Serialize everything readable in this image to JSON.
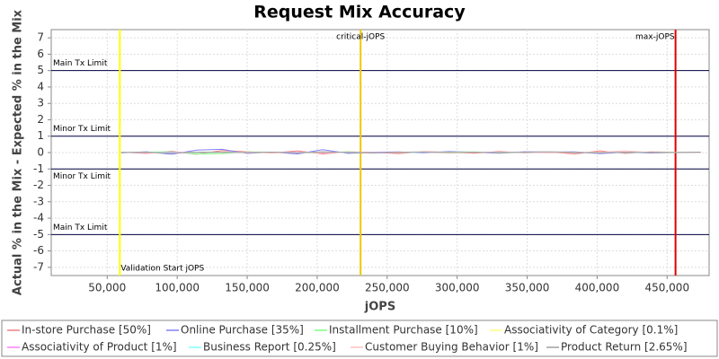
{
  "chart_data": {
    "type": "line",
    "title": "Request Mix Accuracy",
    "x_label": "jOPS",
    "y_label": "Actual % in the Mix - Expected % in the Mix",
    "x": [
      60000,
      78000,
      96000,
      114000,
      132000,
      150000,
      168000,
      186000,
      204000,
      222000,
      240000,
      258000,
      276000,
      294000,
      312000,
      330000,
      348000,
      366000,
      384000,
      402000,
      420000,
      438000,
      456000,
      474000
    ],
    "series": [
      {
        "name": "In-store Purchase [50%]",
        "color": "#f08080",
        "values": [
          0.02,
          -0.05,
          0.08,
          -0.1,
          0.12,
          0.05,
          -0.03,
          0.1,
          -0.08,
          0.04,
          0.02,
          -0.06,
          0.05,
          0.03,
          -0.04,
          0.06,
          -0.02,
          0.03,
          -0.08,
          0.1,
          -0.05,
          0.04,
          0.02,
          0.03
        ]
      },
      {
        "name": "Online Purchase [35%]",
        "color": "#8080ff",
        "values": [
          -0.02,
          0.05,
          -0.1,
          0.15,
          0.2,
          -0.05,
          0.03,
          -0.08,
          0.18,
          -0.05,
          0.02,
          0.04,
          -0.03,
          0.06,
          0.02,
          -0.04,
          0.05,
          0.03,
          0.04,
          -0.06,
          0.02,
          -0.03,
          0.01,
          0.02
        ]
      },
      {
        "name": "Installment Purchase [10%]",
        "color": "#80ff80",
        "values": [
          0.0,
          0.03,
          0.05,
          -0.08,
          -0.06,
          0.04,
          0.02,
          0.01,
          -0.03,
          0.05,
          -0.02,
          0.03,
          0.0,
          0.02,
          0.04,
          -0.02,
          0.01,
          0.03,
          -0.01,
          0.02,
          0.0,
          0.01,
          0.02,
          0.0
        ]
      },
      {
        "name": "Associativity of Category [0.1%]",
        "color": "#ffff80",
        "values": [
          0.0,
          0.0,
          0.01,
          0.0,
          0.0,
          -0.01,
          0.0,
          0.0,
          0.01,
          0.0,
          0.0,
          0.0,
          0.0,
          0.01,
          0.0,
          0.0,
          0.0,
          0.0,
          0.0,
          0.0,
          0.01,
          0.0,
          0.0,
          0.0
        ]
      },
      {
        "name": "Associativity of Product [1%]",
        "color": "#ff80ff",
        "values": [
          0.01,
          -0.02,
          0.03,
          0.0,
          0.02,
          -0.01,
          0.01,
          0.02,
          -0.02,
          0.01,
          0.0,
          0.02,
          -0.01,
          0.0,
          0.01,
          0.02,
          0.0,
          -0.01,
          0.01,
          0.0,
          0.02,
          0.0,
          0.01,
          0.0
        ]
      },
      {
        "name": "Business Report [0.25%]",
        "color": "#80ffff",
        "values": [
          0.0,
          0.01,
          0.0,
          -0.01,
          0.01,
          0.0,
          0.0,
          0.01,
          0.0,
          0.0,
          -0.01,
          0.0,
          0.01,
          0.0,
          0.0,
          0.01,
          0.0,
          0.0,
          0.0,
          0.01,
          0.0,
          0.0,
          0.0,
          0.0
        ]
      },
      {
        "name": "Customer Buying Behavior [1%]",
        "color": "#ffc0c0",
        "values": [
          0.02,
          0.0,
          -0.03,
          0.02,
          0.01,
          0.03,
          -0.02,
          0.01,
          0.0,
          0.02,
          -0.01,
          0.01,
          0.03,
          -0.02,
          0.0,
          0.01,
          0.02,
          -0.01,
          0.0,
          0.02,
          0.1,
          0.0,
          0.01,
          0.0
        ]
      },
      {
        "name": "Product Return [2.65%]",
        "color": "#a0a0a0",
        "values": [
          0.01,
          0.02,
          -0.04,
          0.03,
          0.02,
          0.0,
          0.03,
          -0.02,
          0.05,
          0.01,
          -0.03,
          0.02,
          0.04,
          0.0,
          0.02,
          -0.01,
          0.03,
          0.05,
          0.01,
          -0.02,
          0.02,
          0.01,
          0.0,
          0.02
        ]
      }
    ],
    "xlim": [
      10000,
      480000
    ],
    "xticks": [
      {
        "value": 50000,
        "label": "50,000"
      },
      {
        "value": 100000,
        "label": "100,000"
      },
      {
        "value": 150000,
        "label": "150,000"
      },
      {
        "value": 200000,
        "label": "200,000"
      },
      {
        "value": 250000,
        "label": "250,000"
      },
      {
        "value": 300000,
        "label": "300,000"
      },
      {
        "value": 350000,
        "label": "350,000"
      },
      {
        "value": 400000,
        "label": "400,000"
      },
      {
        "value": 450000,
        "label": "450,000"
      }
    ],
    "ylim": [
      -7.5,
      7.5
    ],
    "yticks": [
      -7,
      -6,
      -5,
      -4,
      -3,
      -2,
      -1,
      0,
      1,
      2,
      3,
      4,
      5,
      6,
      7
    ],
    "grid": true,
    "limit_lines": [
      {
        "label": "Main Tx Limit",
        "y": 5,
        "position": "above"
      },
      {
        "label": "Minor Tx Limit",
        "y": 1,
        "position": "above"
      },
      {
        "label": "Minor Tx Limit",
        "y": -1,
        "position": "below"
      },
      {
        "label": "Main Tx Limit",
        "y": -5,
        "position": "above"
      }
    ],
    "markers": [
      {
        "label": "Validation Start jOPS",
        "x": 59000,
        "color": "#ffff00",
        "label_at": "bottom",
        "anchor": "start"
      },
      {
        "label": "critical-jOPS",
        "x": 231000,
        "color": "#f0c800",
        "label_at": "top",
        "anchor": "middle"
      },
      {
        "label": "max-jOPS",
        "x": 456000,
        "color": "#e00000",
        "label_at": "top",
        "anchor": "end"
      }
    ]
  }
}
